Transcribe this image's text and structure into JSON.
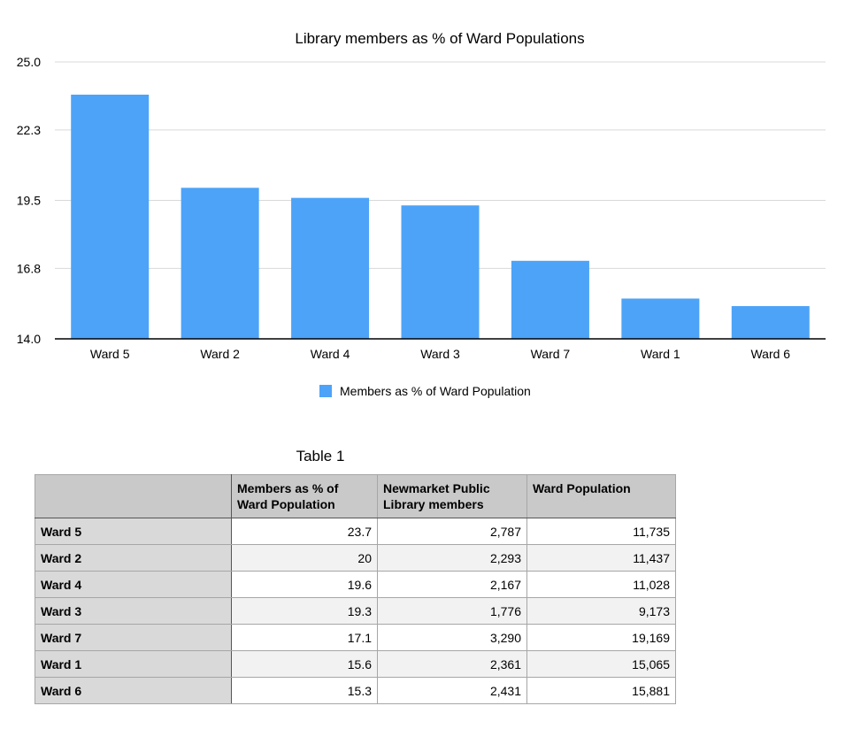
{
  "chart_data": {
    "type": "bar",
    "title": "Library members as % of Ward Populations",
    "categories": [
      "Ward 5",
      "Ward 2",
      "Ward 4",
      "Ward 3",
      "Ward 7",
      "Ward 1",
      "Ward 6"
    ],
    "series": [
      {
        "name": "Members as % of Ward Population",
        "values": [
          23.7,
          20,
          19.6,
          19.3,
          17.1,
          15.6,
          15.3
        ],
        "color": "#4da3f7"
      }
    ],
    "y_ticks": [
      "25.0",
      "22.3",
      "19.5",
      "16.8",
      "14.0"
    ],
    "ylim": [
      14.0,
      25.0
    ],
    "grid": true,
    "legend_position": "bottom"
  },
  "table": {
    "caption": "Table 1",
    "headers": [
      "",
      "Members as % of Ward Population",
      "Newmarket Public Library members",
      "Ward Population"
    ],
    "rows": [
      [
        "Ward 5",
        "23.7",
        "2,787",
        "11,735"
      ],
      [
        "Ward 2",
        "20",
        "2,293",
        "11,437"
      ],
      [
        "Ward 4",
        "19.6",
        "2,167",
        "11,028"
      ],
      [
        "Ward 3",
        "19.3",
        "1,776",
        "9,173"
      ],
      [
        "Ward 7",
        "17.1",
        "3,290",
        "19,169"
      ],
      [
        "Ward 1",
        "15.6",
        "2,361",
        "15,065"
      ],
      [
        "Ward 6",
        "15.3",
        "2,431",
        "15,881"
      ]
    ]
  }
}
